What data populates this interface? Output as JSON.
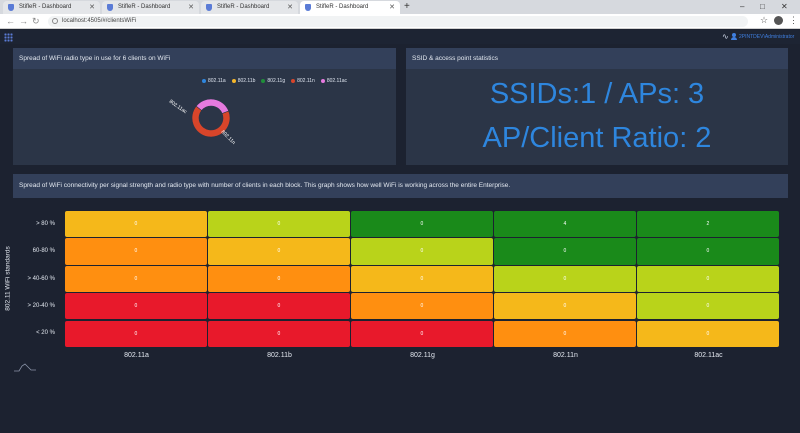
{
  "browser": {
    "tabs": [
      {
        "title": "StifleR - Dashboard",
        "active": false
      },
      {
        "title": "StifleR - Dashboard",
        "active": false
      },
      {
        "title": "StifleR - Dashboard",
        "active": false
      },
      {
        "title": "StifleR - Dashboard",
        "active": true
      }
    ],
    "new_tab": "+",
    "url": "localhost:4505/#/clientsWiFi",
    "window_controls": [
      "–",
      "□",
      "✕"
    ]
  },
  "header": {
    "user": "2PINTDEV\\Administrator"
  },
  "panel_radio": {
    "title": "Spread of WiFi radio type in use for 6 clients on WiFi",
    "legend": [
      {
        "label": "802.11a",
        "color": "#2e86de"
      },
      {
        "label": "802.11b",
        "color": "#f5b62a"
      },
      {
        "label": "802.11g",
        "color": "#1f8f3a"
      },
      {
        "label": "802.11n",
        "color": "#d8452a"
      },
      {
        "label": "802.11ac",
        "color": "#e67adf"
      }
    ],
    "donut_labels": [
      "802.11ac",
      "802.11n"
    ]
  },
  "panel_ssid": {
    "title": "SSID & access point statistics",
    "ssid_line": "SSIDs:1 / APs: 3",
    "ratio_line": "AP/Client Ratio: 2"
  },
  "section": {
    "title": "Spread of WiFi connectivity per signal strength and radio type with number of clients in each block. This graph shows how well WiFi is working across the entire Enterprise."
  },
  "chart_data": {
    "type": "heatmap",
    "ylabel": "802.11 WiFi standards",
    "rows": [
      "> 80 %",
      "60-80 %",
      "> 40-60 %",
      "> 20-40 %",
      "< 20 %"
    ],
    "columns": [
      "802.11a",
      "802.11b",
      "802.11g",
      "802.11n",
      "802.11ac"
    ],
    "values": [
      [
        0,
        0,
        0,
        4,
        2
      ],
      [
        0,
        0,
        0,
        0,
        0
      ],
      [
        0,
        0,
        0,
        0,
        0
      ],
      [
        0,
        0,
        0,
        0,
        0
      ],
      [
        0,
        0,
        0,
        0,
        0
      ]
    ],
    "colors": [
      [
        "#f5b81a",
        "#b9d31a",
        "#1a8a1a",
        "#1a8a1a",
        "#1a8a1a"
      ],
      [
        "#ff8f10",
        "#f5b81a",
        "#b9d31a",
        "#1a8a1a",
        "#1a8a1a"
      ],
      [
        "#ff8f10",
        "#ff8f10",
        "#f5b81a",
        "#b9d31a",
        "#b9d31a"
      ],
      [
        "#e8192b",
        "#e8192b",
        "#ff8f10",
        "#f5b81a",
        "#b9d31a"
      ],
      [
        "#e8192b",
        "#e8192b",
        "#e8192b",
        "#ff8f10",
        "#f5b81a"
      ]
    ]
  },
  "donut_data": {
    "type": "pie",
    "categories": [
      "802.11ac",
      "802.11n"
    ],
    "values": [
      2,
      4
    ],
    "colors": [
      "#e67adf",
      "#d8452a"
    ]
  }
}
